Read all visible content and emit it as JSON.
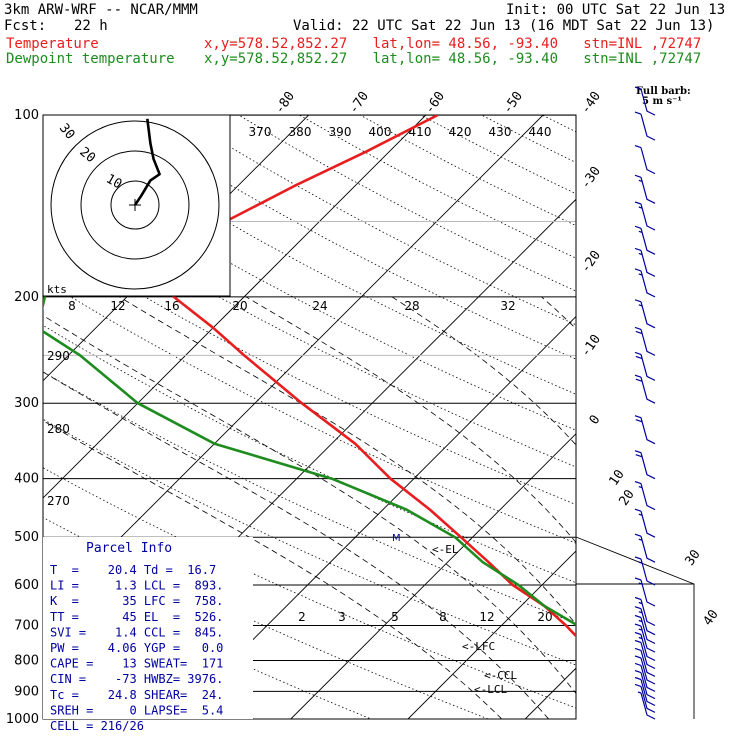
{
  "header": {
    "model": "3km ARW-WRF -- NCAR/MMM",
    "init": "Init: 00 UTC Sat 22 Jun 13",
    "fcst_label": "Fcst:",
    "fcst_value": "22 h",
    "valid": "Valid: 22 UTC Sat 22 Jun 13 (16 MDT Sat 22 Jun 13)",
    "temp_label": "Temperature",
    "temp_loc": "x,y=578.52,852.27   lat,lon= 48.56, -93.40   stn=INL ,72747",
    "dew_label": "Dewpoint temperature",
    "dew_loc": "x,y=578.52,852.27   lat,lon= 48.56, -93.40   stn=INL ,72747"
  },
  "wind_barb_title": "Full barb:",
  "wind_barb_units": "5 m s⁻¹",
  "hodograph": {
    "units": "kts",
    "ring_labels": [
      "10",
      "20",
      "30"
    ]
  },
  "parcel_info": {
    "title": "Parcel Info",
    "rows": [
      "T  =    20.4 Td =  16.7",
      "LI =     1.3 LCL =  893.",
      "K  =      35 LFC =  758.",
      "TT =      45 EL  =  526.",
      "SVI =    1.4 CCL =  845.",
      "PW =    4.06 YGP =   0.0",
      "CAPE =    13 SWEAT=  171",
      "CIN =    -73 HWBZ= 3976.",
      "Tc =    24.8 SHEAR=  24.",
      "SREH =     0 LAPSE=  5.4",
      "CELL = 216/26"
    ]
  },
  "chart_data": {
    "type": "line",
    "title": "",
    "xlabel": "",
    "ylabel": "",
    "y_axis": "pressure (hPa), log scale",
    "pressure_ticks": [
      "100",
      "200",
      "300",
      "400",
      "500",
      "600",
      "700",
      "800",
      "900",
      "1000"
    ],
    "ylim": [
      1000,
      100
    ],
    "isotherm_labels": [
      "-80",
      "-70",
      "-60",
      "-50",
      "-40",
      "-30",
      "-20",
      "-10",
      "0",
      "10",
      "20",
      "30",
      "40"
    ],
    "isentrope_labels": [
      "370",
      "380",
      "390",
      "400",
      "410",
      "420",
      "430",
      "440"
    ],
    "theta_labels": [
      "290",
      "280",
      "270"
    ],
    "mixing_ratio_labels": [
      "8",
      "12",
      "16",
      "20",
      "24",
      "28",
      "32"
    ],
    "mixing_ratio_low_labels": [
      "2",
      "3",
      "5",
      "8",
      "12",
      "20"
    ],
    "level_annotations": [
      "<-EL",
      "<-LFC",
      "<-CCL",
      "<-LCL"
    ],
    "series": [
      {
        "name": "Temperature",
        "color": "#e81e1e",
        "pressure": [
          1000,
          950,
          925,
          900,
          870,
          850,
          800,
          750,
          700,
          650,
          600,
          550,
          500,
          450,
          400,
          350,
          300,
          250,
          225,
          200,
          185,
          170,
          150,
          130,
          115,
          100
        ],
        "temperature": [
          21,
          19.5,
          18.5,
          19,
          17,
          15.5,
          12,
          8.5,
          5.5,
          2,
          -2.5,
          -6.5,
          -11,
          -16,
          -22,
          -28,
          -36,
          -45,
          -50,
          -56,
          -58,
          -58,
          -58,
          -55,
          -52,
          -49
        ]
      },
      {
        "name": "Dewpoint temperature",
        "color": "#1e8c1e",
        "pressure": [
          980,
          950,
          925,
          900,
          850,
          800,
          750,
          700,
          650,
          600,
          550,
          500,
          450,
          400,
          350,
          300,
          250,
          225,
          200,
          180,
          160,
          140,
          130,
          120,
          110,
          100
        ],
        "temperature": [
          16.7,
          16,
          14.5,
          14.5,
          13.5,
          11.5,
          9,
          6.5,
          2,
          -2,
          -7,
          -11.5,
          -18,
          -27,
          -40,
          -50,
          -59,
          -65,
          -67,
          -69,
          -75,
          -80,
          -80,
          -80,
          -81,
          -82
        ]
      }
    ],
    "hodograph_points": [
      [
        0,
        0
      ],
      [
        2,
        3
      ],
      [
        5,
        8
      ],
      [
        8,
        10
      ],
      [
        6,
        15
      ],
      [
        5,
        20
      ],
      [
        4,
        28
      ]
    ],
    "wind_barbs": [
      {
        "p": 1000,
        "speed": 5
      },
      {
        "p": 975,
        "speed": 10
      },
      {
        "p": 950,
        "speed": 10
      },
      {
        "p": 925,
        "speed": 10
      },
      {
        "p": 900,
        "speed": 10
      },
      {
        "p": 875,
        "speed": 10
      },
      {
        "p": 850,
        "speed": 10
      },
      {
        "p": 825,
        "speed": 10
      },
      {
        "p": 800,
        "speed": 15
      },
      {
        "p": 775,
        "speed": 15
      },
      {
        "p": 750,
        "speed": 15
      },
      {
        "p": 725,
        "speed": 15
      },
      {
        "p": 700,
        "speed": 15
      },
      {
        "p": 650,
        "speed": 15
      },
      {
        "p": 600,
        "speed": 15
      },
      {
        "p": 550,
        "speed": 15
      },
      {
        "p": 500,
        "speed": 15
      },
      {
        "p": 450,
        "speed": 15
      },
      {
        "p": 400,
        "speed": 20
      },
      {
        "p": 350,
        "speed": 20
      },
      {
        "p": 300,
        "speed": 20
      },
      {
        "p": 275,
        "speed": 20
      },
      {
        "p": 250,
        "speed": 20
      },
      {
        "p": 225,
        "speed": 15
      },
      {
        "p": 200,
        "speed": 15
      },
      {
        "p": 185,
        "speed": 15
      },
      {
        "p": 170,
        "speed": 15
      },
      {
        "p": 155,
        "speed": 15
      },
      {
        "p": 140,
        "speed": 15
      },
      {
        "p": 125,
        "speed": 10
      },
      {
        "p": 110,
        "speed": 10
      },
      {
        "p": 100,
        "speed": 10
      }
    ]
  }
}
